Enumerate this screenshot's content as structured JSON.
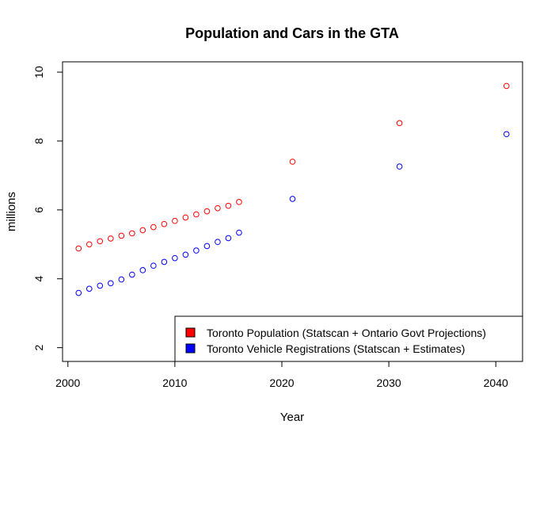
{
  "chart_data": {
    "type": "scatter",
    "title": "Population and Cars in the GTA",
    "xlabel": "Year",
    "ylabel": "millions",
    "xlim": [
      1999.5,
      2042.5
    ],
    "ylim": [
      1.6,
      10.3
    ],
    "xticks": [
      2000,
      2010,
      2020,
      2030,
      2040
    ],
    "yticks": [
      2,
      4,
      6,
      8,
      10
    ],
    "grid": false,
    "legend_position": "bottom-right",
    "marker": "open-circle",
    "series": [
      {
        "name": "Toronto Population (Statscan + Ontario Govt Projections)",
        "color": "#ff0000",
        "x": [
          2001,
          2002,
          2003,
          2004,
          2005,
          2006,
          2007,
          2008,
          2009,
          2010,
          2011,
          2012,
          2013,
          2014,
          2015,
          2016,
          2021,
          2031,
          2041
        ],
        "y": [
          4.88,
          5.0,
          5.09,
          5.17,
          5.25,
          5.32,
          5.41,
          5.5,
          5.59,
          5.68,
          5.78,
          5.87,
          5.96,
          6.05,
          6.12,
          6.23,
          7.4,
          8.52,
          9.6
        ]
      },
      {
        "name": "Toronto Vehicle Registrations (Statscan +  Estimates)",
        "color": "#0000ff",
        "x": [
          2001,
          2002,
          2003,
          2004,
          2005,
          2006,
          2007,
          2008,
          2009,
          2010,
          2011,
          2012,
          2013,
          2014,
          2015,
          2016,
          2021,
          2031,
          2041
        ],
        "y": [
          3.59,
          3.71,
          3.8,
          3.87,
          3.98,
          4.12,
          4.25,
          4.38,
          4.49,
          4.6,
          4.7,
          4.82,
          4.95,
          5.07,
          5.18,
          5.34,
          6.32,
          7.26,
          8.2
        ]
      }
    ]
  }
}
